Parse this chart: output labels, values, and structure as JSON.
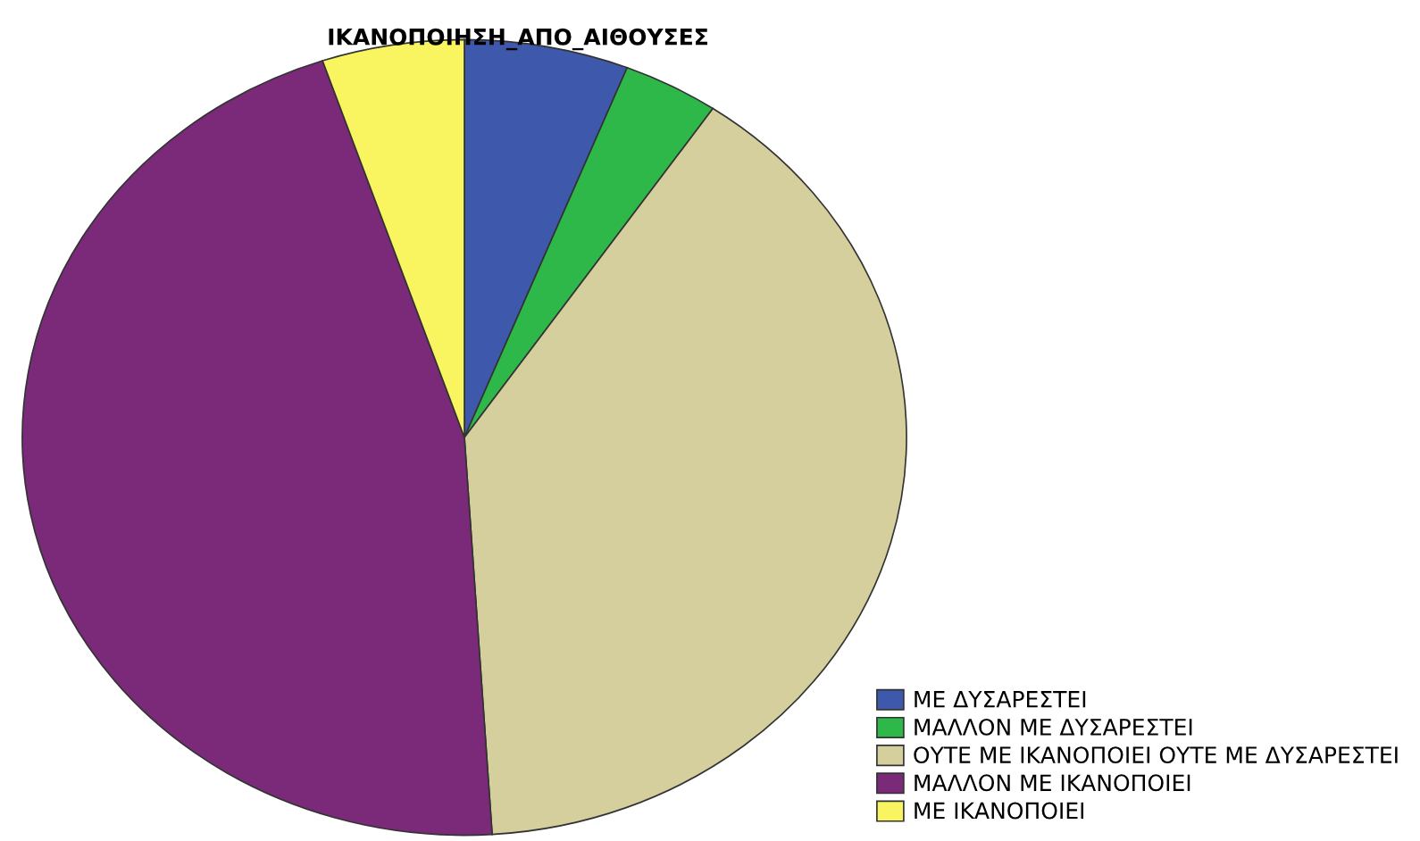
{
  "chart_data": {
    "type": "pie",
    "title": "ΙΚΑΝΟΠΟΙΗΣΗ_ΑΠΟ_ΑΙΘΟΥΣΕΣ",
    "categories": [
      "ΜΕ ΔΥΣΑΡΕΣΤΕΙ",
      "ΜΑΛΛΟΝ ΜΕ ΔΥΣΑΡΕΣΤΕΙ",
      "ΟΥΤΕ ΜΕ ΙΚΑΝΟΠΟΙΕΙ ΟΥΤΕ ΜΕ ΔΥΣΑΡΕΣΤΕΙ",
      "ΜΑΛΛΟΝ ΜΕ ΙΚΑΝΟΠΟΙΕΙ",
      "ΜΕ ΙΚΑΝΟΠΟΙΕΙ"
    ],
    "values": [
      6.0,
      3.5,
      39.5,
      45.8,
      5.2
    ],
    "colors": [
      "#3e58ac",
      "#2fb84a",
      "#d4cf9c",
      "#7b2a7a",
      "#f8f560"
    ],
    "legend": "bottom right"
  }
}
